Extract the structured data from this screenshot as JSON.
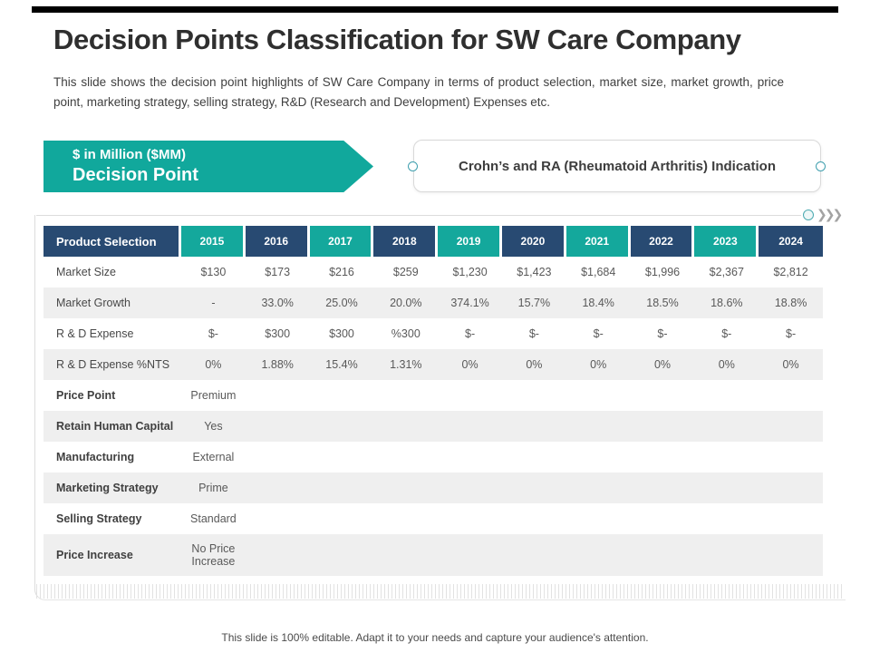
{
  "slide": {
    "title": "Decision Points Classification for SW Care Company",
    "subtitle": "This slide shows the decision point highlights of SW Care Company in terms of product selection, market size, market growth, price point, marketing strategy, selling strategy, R&D (Research and Development) Expenses etc.",
    "footer": "This slide is 100% editable. Adapt it to your needs and capture your audience's attention."
  },
  "banner": {
    "kicker": "$ in Million ($MM)",
    "label": "Decision Point"
  },
  "indication": {
    "label": "Crohn’s and RA (Rheumatoid Arthritis) Indication"
  },
  "icons": {
    "chevrons": "❯❯❯"
  },
  "colors": {
    "teal": "#11a89c",
    "navy": "#284a72",
    "row_alt": "#efefef",
    "accent_black": "#000000",
    "border_gray": "#d9d9d9"
  },
  "chart_data": {
    "type": "table",
    "title": "Decision Point — Crohn’s and RA (Rheumatoid Arthritis) Indication ($ in Million)",
    "header": [
      "Product Selection",
      "2015",
      "2016",
      "2017",
      "2018",
      "2019",
      "2020",
      "2021",
      "2022",
      "2023",
      "2024"
    ],
    "rows": [
      {
        "label": "Market Size",
        "bold": false,
        "values": [
          "$130",
          "$173",
          "$216",
          "$259",
          "$1,230",
          "$1,423",
          "$1,684",
          "$1,996",
          "$2,367",
          "$2,812"
        ]
      },
      {
        "label": "Market Growth",
        "bold": false,
        "values": [
          "-",
          "33.0%",
          "25.0%",
          "20.0%",
          "374.1%",
          "15.7%",
          "18.4%",
          "18.5%",
          "18.6%",
          "18.8%"
        ]
      },
      {
        "label": "R & D Expense",
        "bold": false,
        "values": [
          "$-",
          "$300",
          "$300",
          "%300",
          "$-",
          "$-",
          "$-",
          "$-",
          "$-",
          "$-"
        ]
      },
      {
        "label": "R & D Expense %NTS",
        "bold": false,
        "values": [
          "0%",
          "1.88%",
          "15.4%",
          "1.31%",
          "0%",
          "0%",
          "0%",
          "0%",
          "0%",
          "0%"
        ]
      },
      {
        "label": "Price Point",
        "bold": true,
        "values": [
          "Premium",
          "",
          "",
          "",
          "",
          "",
          "",
          "",
          "",
          ""
        ]
      },
      {
        "label": "Retain Human Capital",
        "bold": true,
        "values": [
          "Yes",
          "",
          "",
          "",
          "",
          "",
          "",
          "",
          "",
          ""
        ]
      },
      {
        "label": "Manufacturing",
        "bold": true,
        "values": [
          "External",
          "",
          "",
          "",
          "",
          "",
          "",
          "",
          "",
          ""
        ]
      },
      {
        "label": "Marketing Strategy",
        "bold": true,
        "values": [
          "Prime",
          "",
          "",
          "",
          "",
          "",
          "",
          "",
          "",
          ""
        ]
      },
      {
        "label": "Selling Strategy",
        "bold": true,
        "values": [
          "Standard",
          "",
          "",
          "",
          "",
          "",
          "",
          "",
          "",
          ""
        ]
      },
      {
        "label": "Price Increase",
        "bold": true,
        "values": [
          "No Price Increase",
          "",
          "",
          "",
          "",
          "",
          "",
          "",
          "",
          ""
        ]
      }
    ]
  }
}
